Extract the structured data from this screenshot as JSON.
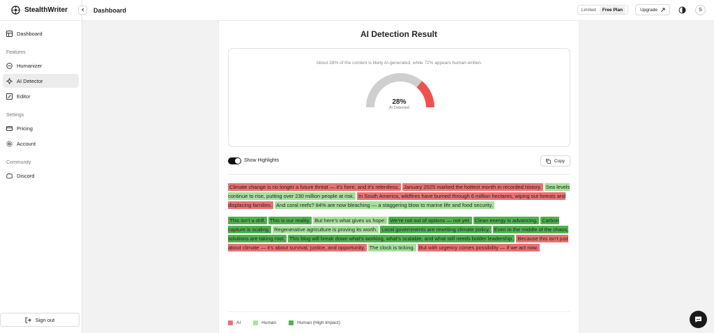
{
  "brand": {
    "name": "StealthWriter"
  },
  "sidebar": {
    "top_items": [
      {
        "label": "Dashboard",
        "icon": "dashboard-icon"
      }
    ],
    "sections": [
      {
        "title": "Features",
        "items": [
          {
            "label": "Humanizer",
            "icon": "humanizer-icon"
          },
          {
            "label": "AI Detector",
            "icon": "detector-icon",
            "active": true
          },
          {
            "label": "Editor",
            "icon": "editor-icon"
          }
        ]
      },
      {
        "title": "Settings",
        "items": [
          {
            "label": "Pricing",
            "icon": "card-icon"
          },
          {
            "label": "Account",
            "icon": "gear-icon"
          }
        ]
      },
      {
        "title": "Community",
        "items": [
          {
            "label": "Discord",
            "icon": "discord-icon"
          }
        ]
      }
    ],
    "sign_out": "Sign out"
  },
  "topbar": {
    "title": "Dashboard",
    "plan_label": "Limited",
    "plan_name": "Free Plan",
    "upgrade_label": "Upgrade",
    "avatar_initial": "S"
  },
  "result": {
    "title": "AI Detection Result",
    "summary": "About 28% of the content is likely AI-generated, while 72% appears human-written.",
    "ai_percent": 28,
    "score_text": "28%",
    "score_label": "AI Detected",
    "gauge_color_ai": "#ef5050",
    "gauge_color_rest": "#cfcfcf"
  },
  "controls": {
    "toggle_label": "Show Highlights",
    "toggle_on": true,
    "copy_label": "Copy"
  },
  "colors": {
    "ai": "#ea7272",
    "human": "#a6e19b",
    "high": "#4fb34d"
  },
  "paragraphs": [
    [
      {
        "t": "Climate change is no longer a future threat — it’s here, and it’s relentless.",
        "c": "ai"
      },
      {
        "t": " ",
        "c": ""
      },
      {
        "t": "January 2025 marked the hottest month in recorded history.",
        "c": "ai"
      },
      {
        "t": " ",
        "c": ""
      },
      {
        "t": "Sea levels continue to rise, putting over 230 million people at risk.",
        "c": "human"
      },
      {
        "t": " ",
        "c": ""
      },
      {
        "t": "In South America, wildfires have burned through 6 million hectares, wiping out forests and displacing families.",
        "c": "ai"
      },
      {
        "t": " ",
        "c": ""
      },
      {
        "t": "And coral reefs? 84% are now bleaching — a staggering blow to marine life and food security.",
        "c": "human"
      }
    ],
    [
      {
        "t": "This isn’t a drill.",
        "c": "high"
      },
      {
        "t": " ",
        "c": ""
      },
      {
        "t": "This is our reality.",
        "c": "high"
      },
      {
        "t": " ",
        "c": ""
      },
      {
        "t": "But here’s what gives us hope:",
        "c": "human"
      },
      {
        "t": " ",
        "c": ""
      },
      {
        "t": "We’re not out of options — not yet.",
        "c": "high"
      },
      {
        "t": " ",
        "c": ""
      },
      {
        "t": "Clean energy is advancing.",
        "c": "high"
      },
      {
        "t": " ",
        "c": ""
      },
      {
        "t": "Carbon capture is scaling.",
        "c": "high"
      },
      {
        "t": " ",
        "c": ""
      },
      {
        "t": "Regenerative agriculture is proving its worth.",
        "c": "human"
      },
      {
        "t": " ",
        "c": ""
      },
      {
        "t": "Local governments are rewriting climate policy.",
        "c": "high"
      },
      {
        "t": " ",
        "c": ""
      },
      {
        "t": "Even in the middle of the chaos, solutions are taking root.",
        "c": "high"
      },
      {
        "t": " ",
        "c": ""
      },
      {
        "t": "This blog will break down what’s working, what’s scalable, and what still needs bolder leadership.",
        "c": "high"
      },
      {
        "t": " ",
        "c": ""
      },
      {
        "t": "Because this isn’t just about climate — it’s about survival, justice, and opportunity.",
        "c": "ai"
      },
      {
        "t": " ",
        "c": ""
      },
      {
        "t": "The clock is ticking.",
        "c": "human"
      },
      {
        "t": " ",
        "c": ""
      },
      {
        "t": "But with urgency comes possibility — if we act now.",
        "c": "ai"
      }
    ]
  ],
  "legend": [
    {
      "label": "AI",
      "c": "ai"
    },
    {
      "label": "Human",
      "c": "human"
    },
    {
      "label": "Human (High Impact)",
      "c": "high"
    }
  ]
}
